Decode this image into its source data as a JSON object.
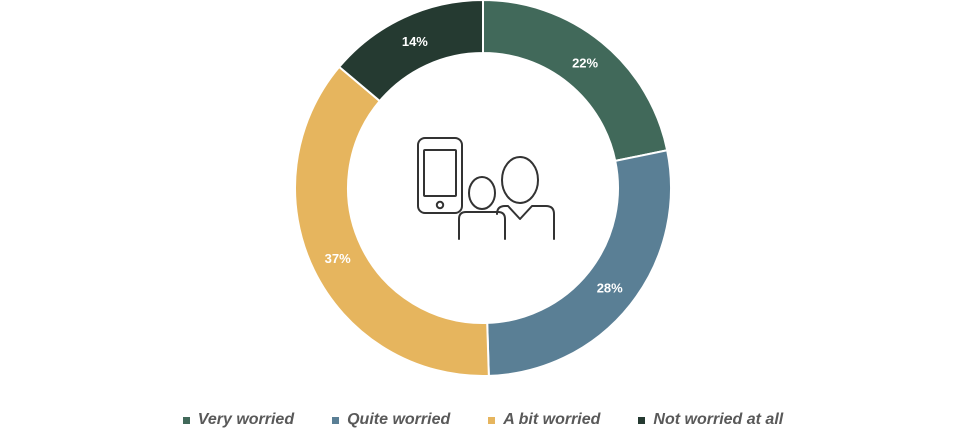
{
  "chart_data": {
    "type": "pie",
    "variant": "donut",
    "categories": [
      "Very worried",
      "Quite worried",
      "A bit worried",
      "Not worried at all"
    ],
    "values": [
      22,
      28,
      37,
      14
    ],
    "value_labels": [
      "22%",
      "28%",
      "37%",
      "14%"
    ],
    "unit": "%",
    "colors": [
      "#41695a",
      "#5a7f95",
      "#e6b55e",
      "#253a31"
    ],
    "center_icon": "phone-parent-child-icon",
    "legend_position": "bottom",
    "title": ""
  }
}
